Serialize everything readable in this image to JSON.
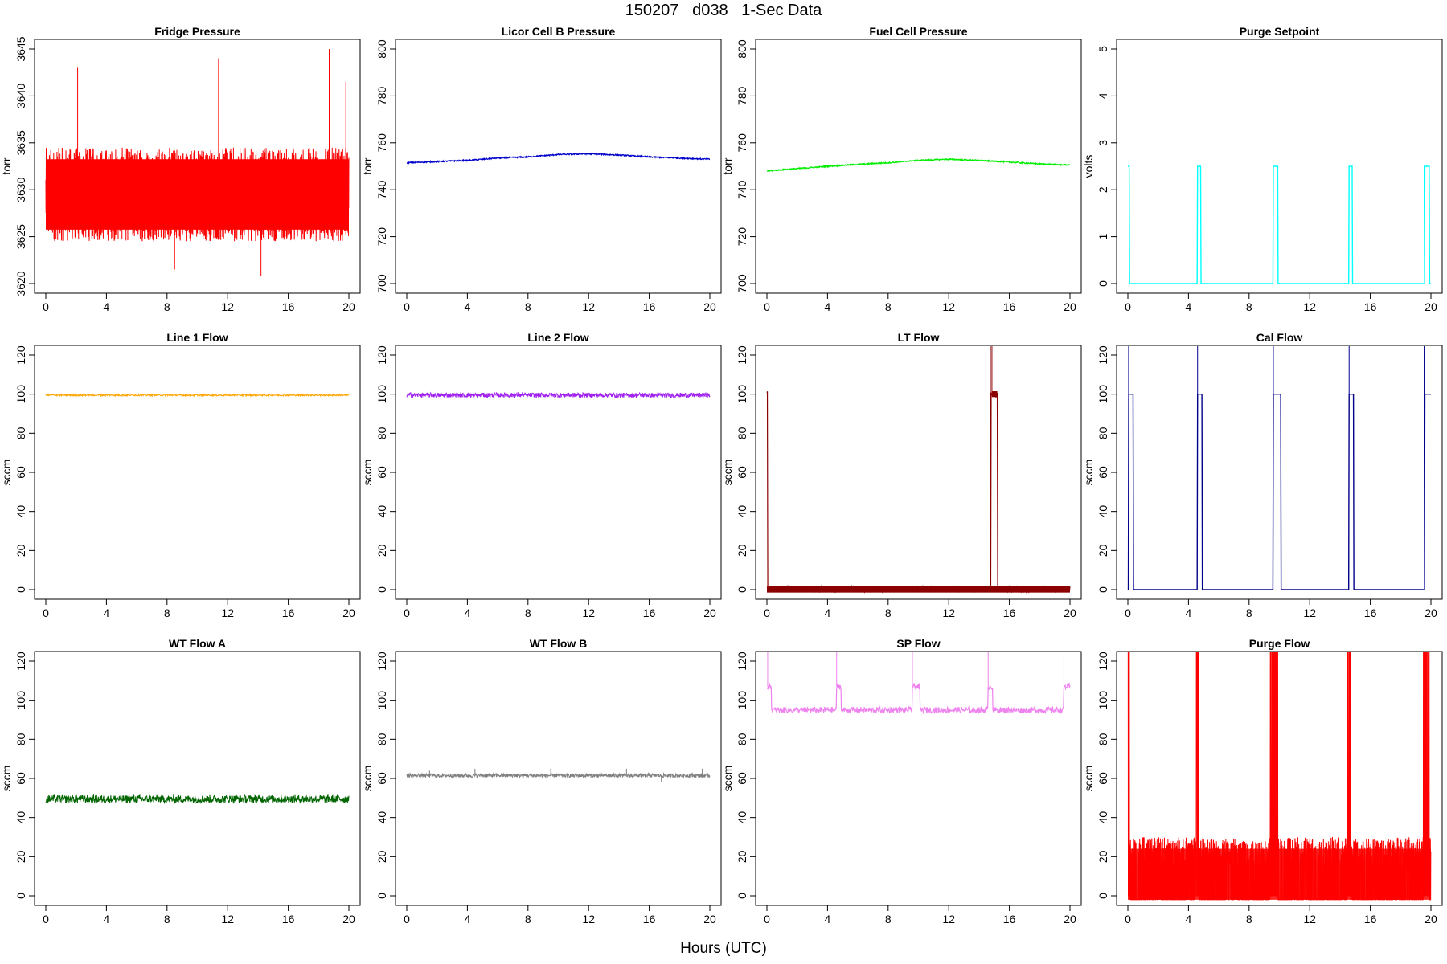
{
  "page": {
    "title": "150207   d038   1-Sec Data",
    "xlabel": "Hours (UTC)"
  },
  "chart_data": [
    {
      "type": "line",
      "title": "Fridge Pressure",
      "ylabel": "torr",
      "ylim": [
        3620,
        3645
      ],
      "yticks": [
        3620,
        3625,
        3630,
        3635,
        3640,
        3645
      ],
      "xlim": [
        0,
        20
      ],
      "xticks": [
        0,
        4,
        8,
        12,
        16,
        20
      ],
      "color": "#ff0000",
      "style": "noise",
      "base": 3629.5,
      "amplitude": 5,
      "spikes": [
        [
          2.1,
          3643
        ],
        [
          8.5,
          3621.5
        ],
        [
          11.4,
          3644
        ],
        [
          14.2,
          3620.8
        ],
        [
          18.7,
          3645
        ],
        [
          19.8,
          3641.5
        ]
      ]
    },
    {
      "type": "line",
      "title": "Licor Cell B Pressure",
      "ylabel": "torr",
      "ylim": [
        700,
        800
      ],
      "yticks": [
        700,
        720,
        740,
        760,
        780,
        800
      ],
      "xlim": [
        0,
        20
      ],
      "xticks": [
        0,
        4,
        8,
        12,
        16,
        20
      ],
      "color": "#0000cd",
      "style": "line",
      "points": [
        [
          0,
          751.5
        ],
        [
          2,
          752
        ],
        [
          4,
          752.5
        ],
        [
          6,
          753.5
        ],
        [
          8,
          754
        ],
        [
          10,
          755
        ],
        [
          12,
          755.3
        ],
        [
          14,
          754.8
        ],
        [
          16,
          754
        ],
        [
          18,
          753.5
        ],
        [
          20,
          753
        ]
      ]
    },
    {
      "type": "line",
      "title": "Fuel Cell Pressure",
      "ylabel": "torr",
      "ylim": [
        700,
        800
      ],
      "yticks": [
        700,
        720,
        740,
        760,
        780,
        800
      ],
      "xlim": [
        0,
        20
      ],
      "xticks": [
        0,
        4,
        8,
        12,
        16,
        20
      ],
      "color": "#00ee00",
      "style": "line",
      "points": [
        [
          0,
          748
        ],
        [
          2,
          749
        ],
        [
          4,
          750
        ],
        [
          6,
          750.8
        ],
        [
          8,
          751.5
        ],
        [
          10,
          752.5
        ],
        [
          12,
          753
        ],
        [
          14,
          752.5
        ],
        [
          16,
          751.8
        ],
        [
          18,
          751
        ],
        [
          20,
          750.5
        ]
      ]
    },
    {
      "type": "line",
      "title": "Purge Setpoint",
      "ylabel": "volts",
      "ylim": [
        0,
        5
      ],
      "yticks": [
        0,
        1,
        2,
        3,
        4,
        5
      ],
      "xlim": [
        0,
        20
      ],
      "xticks": [
        0,
        4,
        8,
        12,
        16,
        20
      ],
      "color": "#00ffff",
      "style": "step",
      "base": 0,
      "pulses": [
        [
          0,
          0.1,
          2.5
        ],
        [
          4.6,
          4.8,
          2.5
        ],
        [
          9.6,
          9.9,
          2.5
        ],
        [
          14.6,
          14.8,
          2.5
        ],
        [
          19.6,
          19.9,
          2.5
        ]
      ]
    },
    {
      "type": "line",
      "title": "Line 1 Flow",
      "ylabel": "sccm",
      "ylim": [
        0,
        120
      ],
      "yticks": [
        0,
        20,
        40,
        60,
        80,
        100,
        120
      ],
      "xlim": [
        0,
        20
      ],
      "xticks": [
        0,
        4,
        8,
        12,
        16,
        20
      ],
      "color": "#ffa500",
      "style": "band",
      "base": 99.5,
      "amplitude": 0.4
    },
    {
      "type": "line",
      "title": "Line 2 Flow",
      "ylabel": "sccm",
      "ylim": [
        0,
        120
      ],
      "yticks": [
        0,
        20,
        40,
        60,
        80,
        100,
        120
      ],
      "xlim": [
        0,
        20
      ],
      "xticks": [
        0,
        4,
        8,
        12,
        16,
        20
      ],
      "color": "#a020f0",
      "style": "band",
      "base": 99.5,
      "amplitude": 1.2
    },
    {
      "type": "line",
      "title": "LT Flow",
      "ylabel": "sccm",
      "ylim": [
        0,
        120
      ],
      "yticks": [
        0,
        20,
        40,
        60,
        80,
        100,
        120
      ],
      "xlim": [
        0,
        20
      ],
      "xticks": [
        0,
        4,
        8,
        12,
        16,
        20
      ],
      "color": "#8b0000",
      "style": "step",
      "base": 0.3,
      "amplitude": 1.5,
      "pulses": [
        [
          0,
          0.05,
          100
        ],
        [
          14.8,
          15.2,
          100
        ]
      ],
      "spikes": [
        [
          14.75,
          130
        ],
        [
          14.85,
          130
        ]
      ]
    },
    {
      "type": "line",
      "title": "Cal Flow",
      "ylabel": "sccm",
      "ylim": [
        0,
        120
      ],
      "yticks": [
        0,
        20,
        40,
        60,
        80,
        100,
        120
      ],
      "xlim": [
        0,
        20
      ],
      "xticks": [
        0,
        4,
        8,
        12,
        16,
        20
      ],
      "color": "#00008b",
      "style": "step",
      "base": 0,
      "pulses": [
        [
          0.05,
          0.35,
          100
        ],
        [
          4.6,
          4.9,
          100
        ],
        [
          9.6,
          10.1,
          100
        ],
        [
          14.6,
          14.9,
          100
        ],
        [
          19.6,
          20,
          100
        ]
      ],
      "spikes": [
        [
          0.05,
          130
        ],
        [
          4.6,
          130
        ],
        [
          9.6,
          130
        ],
        [
          14.6,
          130
        ],
        [
          19.6,
          130
        ]
      ]
    },
    {
      "type": "line",
      "title": "WT Flow A",
      "ylabel": "sccm",
      "ylim": [
        0,
        120
      ],
      "yticks": [
        0,
        20,
        40,
        60,
        80,
        100,
        120
      ],
      "xlim": [
        0,
        20
      ],
      "xticks": [
        0,
        4,
        8,
        12,
        16,
        20
      ],
      "color": "#006400",
      "style": "band",
      "base": 49.5,
      "amplitude": 2.0
    },
    {
      "type": "line",
      "title": "WT Flow B",
      "ylabel": "sccm",
      "ylim": [
        0,
        120
      ],
      "yticks": [
        0,
        20,
        40,
        60,
        80,
        100,
        120
      ],
      "xlim": [
        0,
        20
      ],
      "xticks": [
        0,
        4,
        8,
        12,
        16,
        20
      ],
      "color": "#808080",
      "style": "band",
      "base": 61.5,
      "amplitude": 1.0,
      "spikes": [
        [
          1.5,
          64
        ],
        [
          4.5,
          65
        ],
        [
          9.5,
          65
        ],
        [
          14.5,
          65
        ],
        [
          16.8,
          58
        ],
        [
          19.5,
          65
        ]
      ]
    },
    {
      "type": "line",
      "title": "SP Flow",
      "ylabel": "sccm",
      "ylim": [
        0,
        120
      ],
      "yticks": [
        0,
        20,
        40,
        60,
        80,
        100,
        120
      ],
      "xlim": [
        0,
        20
      ],
      "xticks": [
        0,
        4,
        8,
        12,
        16,
        20
      ],
      "color": "#ee82ee",
      "style": "step",
      "base": 95,
      "amplitude": 1.5,
      "pulses": [
        [
          0,
          0.3,
          107
        ],
        [
          4.6,
          4.9,
          107
        ],
        [
          9.6,
          10.1,
          107
        ],
        [
          14.6,
          14.9,
          107
        ],
        [
          19.6,
          20,
          107
        ]
      ],
      "spikes": [
        [
          0.05,
          130
        ],
        [
          4.6,
          130
        ],
        [
          9.6,
          130
        ],
        [
          14.6,
          130
        ],
        [
          19.6,
          130
        ]
      ]
    },
    {
      "type": "line",
      "title": "Purge Flow",
      "ylabel": "sccm",
      "ylim": [
        0,
        120
      ],
      "yticks": [
        0,
        20,
        40,
        60,
        80,
        100,
        120
      ],
      "xlim": [
        0,
        20
      ],
      "xticks": [
        0,
        4,
        8,
        12,
        16,
        20
      ],
      "color": "#ff0000",
      "style": "purge",
      "base": 15,
      "amplitude": 15,
      "bursts": [
        [
          0,
          0.1
        ],
        [
          4.5,
          4.7
        ],
        [
          9.4,
          9.9
        ],
        [
          14.5,
          14.7
        ],
        [
          19.5,
          19.9
        ]
      ]
    }
  ]
}
